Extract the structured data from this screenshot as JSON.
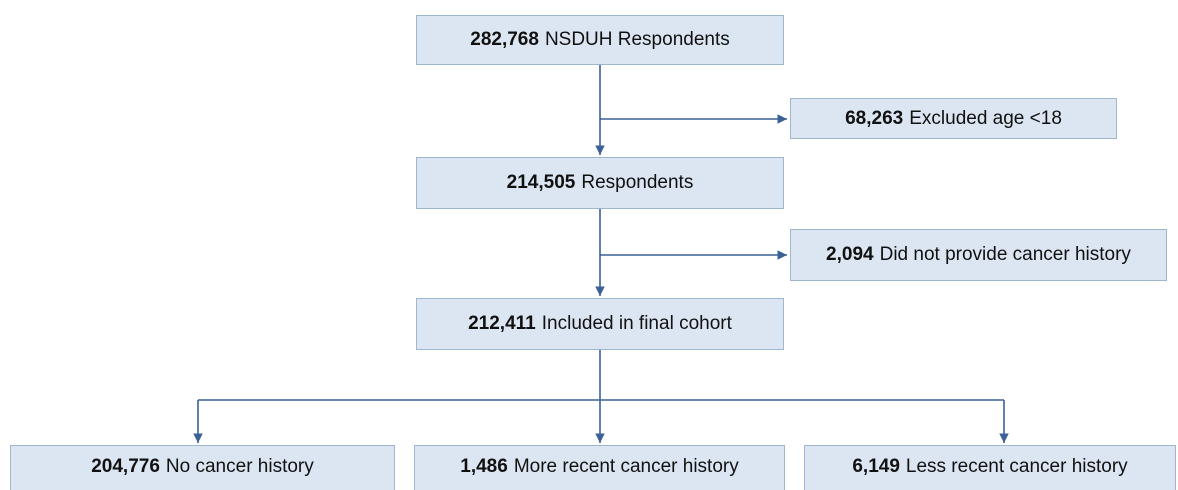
{
  "nodes": [
    {
      "count": "282,768",
      "label": "NSDUH Respondents"
    },
    {
      "count": "68,263",
      "label": "Excluded age <18"
    },
    {
      "count": "214,505",
      "label": "Respondents"
    },
    {
      "count": "2,094",
      "label": "Did not provide cancer history"
    },
    {
      "count": "212,411",
      "label": "Included in final cohort"
    },
    {
      "count": "204,776",
      "label": "No cancer history"
    },
    {
      "count": "1,486",
      "label": "More recent cancer history"
    },
    {
      "count": "6,149",
      "label": "Less recent cancer history"
    }
  ]
}
